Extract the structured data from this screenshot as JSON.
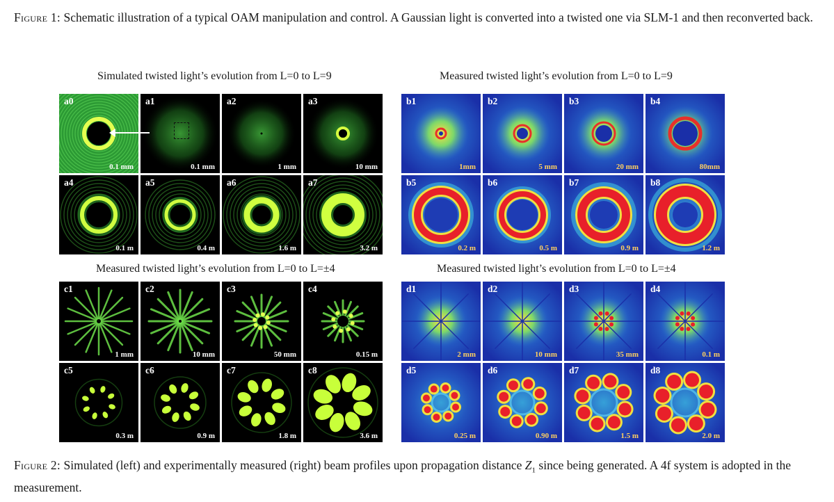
{
  "figure1_caption": {
    "label": "Figure 1:",
    "text": " Schematic illustration of a typical OAM manipulation and control. A Gaussian light is converted into a twisted one via SLM-1 and then reconverted back."
  },
  "figure2_caption": {
    "label": "Figure 2:",
    "text_before": " Simulated (left) and experimentally measured (right) beam profiles upon propagation distance ",
    "var": "Z",
    "sub": "1",
    "text_after": " since being generated. A 4f system is adopted in the measurement."
  },
  "sections": {
    "a_title": "Simulated twisted light’s evolution from L=0 to L=9",
    "b_title": "Measured twisted light’s evolution from L=0 to L=9",
    "c_title": "Measured twisted light’s evolution from L=0 to L=±4",
    "d_title": "Measured twisted light’s evolution from L=0 to L=±4"
  },
  "panels_a": [
    {
      "label": "a0",
      "scale": "0.1 mm"
    },
    {
      "label": "a1",
      "scale": "0.1 mm"
    },
    {
      "label": "a2",
      "scale": "1 mm"
    },
    {
      "label": "a3",
      "scale": "10 mm"
    },
    {
      "label": "a4",
      "scale": "0.1 m"
    },
    {
      "label": "a5",
      "scale": "0.4 m"
    },
    {
      "label": "a6",
      "scale": "1.6 m"
    },
    {
      "label": "a7",
      "scale": "3.2 m"
    }
  ],
  "panels_b": [
    {
      "label": "b1",
      "scale": "1mm"
    },
    {
      "label": "b2",
      "scale": "5 mm"
    },
    {
      "label": "b3",
      "scale": "20 mm"
    },
    {
      "label": "b4",
      "scale": "80mm"
    },
    {
      "label": "b5",
      "scale": "0.2 m"
    },
    {
      "label": "b6",
      "scale": "0.5 m"
    },
    {
      "label": "b7",
      "scale": "0.9 m"
    },
    {
      "label": "b8",
      "scale": "1.2 m"
    }
  ],
  "panels_c": [
    {
      "label": "c1",
      "scale": "1 mm"
    },
    {
      "label": "c2",
      "scale": "10 mm"
    },
    {
      "label": "c3",
      "scale": "50 mm"
    },
    {
      "label": "c4",
      "scale": "0.15 m"
    },
    {
      "label": "c5",
      "scale": "0.3 m"
    },
    {
      "label": "c6",
      "scale": "0.9 m"
    },
    {
      "label": "c7",
      "scale": "1.8 m"
    },
    {
      "label": "c8",
      "scale": "3.6 m"
    }
  ],
  "panels_d": [
    {
      "label": "d1",
      "scale": "2 mm"
    },
    {
      "label": "d2",
      "scale": "10 mm"
    },
    {
      "label": "d3",
      "scale": "35 mm"
    },
    {
      "label": "d4",
      "scale": "0.1 m"
    },
    {
      "label": "d5",
      "scale": "0.25 m"
    },
    {
      "label": "d6",
      "scale": "0.90 m"
    },
    {
      "label": "d7",
      "scale": "1.5 m"
    },
    {
      "label": "d8",
      "scale": "2.0 m"
    }
  ],
  "colors": {
    "sim_bg": "#000000",
    "sim_ring": "#c8ff3a",
    "meas_bg": "#1a2fa8",
    "meas_hot": "#e8202a"
  }
}
